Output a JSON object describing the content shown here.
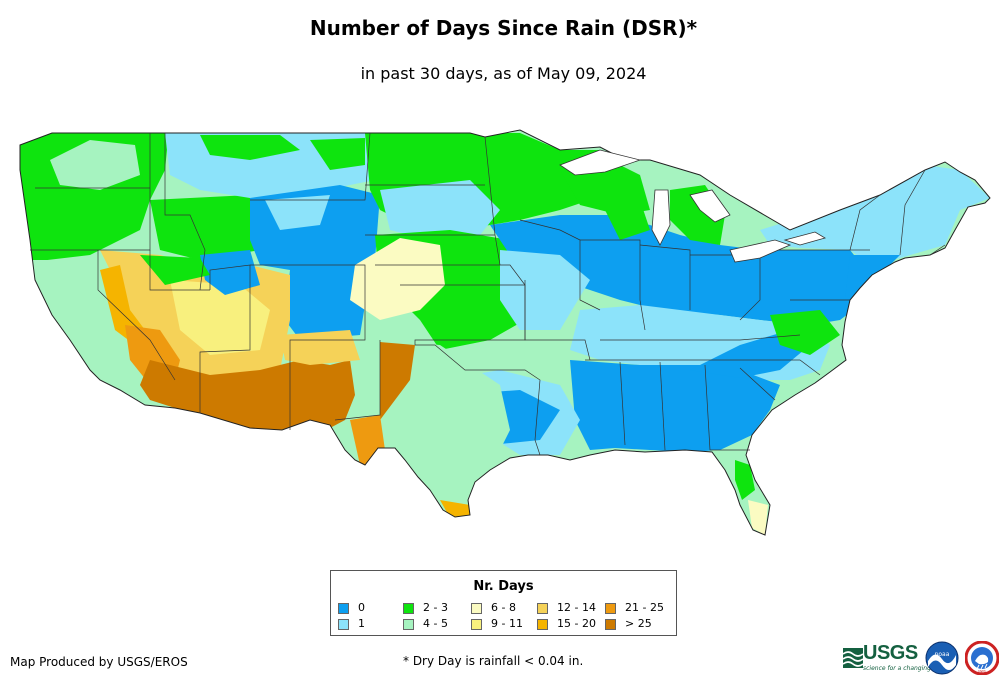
{
  "title": "Number of Days Since Rain (DSR)*",
  "subtitle": "in past 30 days, as of May 09, 2024",
  "legend": {
    "title": "Nr. Days",
    "items": [
      {
        "label": "0",
        "color": "#0d9ff0"
      },
      {
        "label": "1",
        "color": "#8ce3fa"
      },
      {
        "label": "2 - 3",
        "color": "#0ee40e"
      },
      {
        "label": "4 - 5",
        "color": "#a6f3c0"
      },
      {
        "label": "6 - 8",
        "color": "#fbfbc2"
      },
      {
        "label": "9 - 11",
        "color": "#f8f07e"
      },
      {
        "label": "12 - 14",
        "color": "#f5d258"
      },
      {
        "label": "15 - 20",
        "color": "#f5b400"
      },
      {
        "label": "21 - 25",
        "color": "#ee9a10"
      },
      {
        "label": "> 25",
        "color": "#cd7a00"
      }
    ]
  },
  "footer": {
    "producer": "Map Produced by USGS/EROS",
    "footnote": "* Dry Day is rainfall < 0.04 in."
  },
  "logos": {
    "usgs": "USGS",
    "usgs_tagline": "science for a changing world",
    "noaa": "noaa",
    "nws": "NWS"
  }
}
